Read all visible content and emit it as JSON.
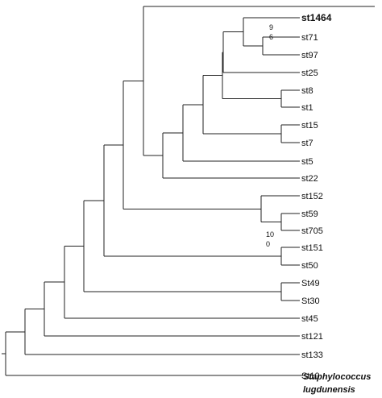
{
  "tree": {
    "leaves": [
      {
        "id": "st1464",
        "label": "st1464",
        "bold": true
      },
      {
        "id": "st71",
        "label": "st71"
      },
      {
        "id": "st97",
        "label": "st97"
      },
      {
        "id": "st25",
        "label": "st25"
      },
      {
        "id": "st8",
        "label": "st8"
      },
      {
        "id": "st1",
        "label": "st1"
      },
      {
        "id": "st15",
        "label": "st15"
      },
      {
        "id": "st7",
        "label": "st7"
      },
      {
        "id": "st5",
        "label": "st5"
      },
      {
        "id": "st22",
        "label": "st22"
      },
      {
        "id": "st152",
        "label": "st152"
      },
      {
        "id": "st59",
        "label": "st59"
      },
      {
        "id": "st705",
        "label": "st705"
      },
      {
        "id": "st151",
        "label": "st151"
      },
      {
        "id": "st50",
        "label": "st50"
      },
      {
        "id": "St49",
        "label": "St49"
      },
      {
        "id": "St30",
        "label": "St30"
      },
      {
        "id": "st45",
        "label": "st45"
      },
      {
        "id": "st121",
        "label": "st121"
      },
      {
        "id": "st133",
        "label": "st133"
      },
      {
        "id": "St10",
        "label": "St10"
      }
    ],
    "outgroup": {
      "line1": "Staphylococcus",
      "line2": "lugdunensis"
    },
    "bootstrap": [
      {
        "id": "bs96",
        "line1": "9",
        "line2": "6"
      },
      {
        "id": "bs100",
        "line1": "10",
        "line2": "0"
      }
    ]
  }
}
